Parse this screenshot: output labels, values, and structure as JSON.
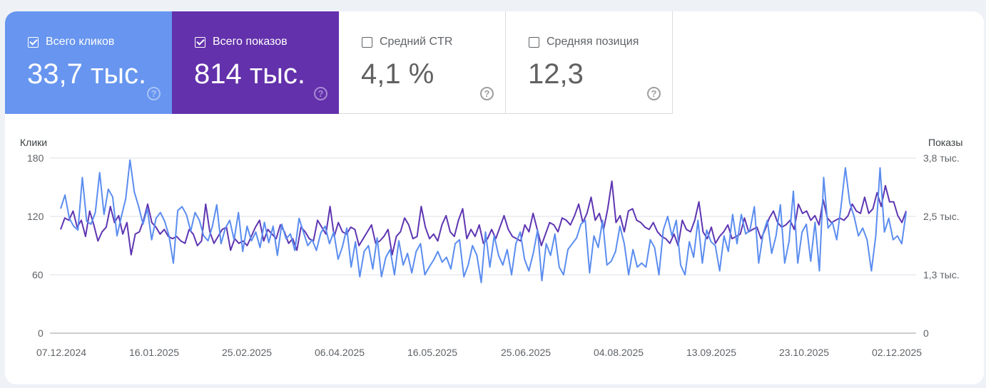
{
  "cards": [
    {
      "label": "Всего кликов",
      "value": "33,7 тыс.",
      "checked": true,
      "color": "#6795ef"
    },
    {
      "label": "Всего показов",
      "value": "814 тыс.",
      "checked": true,
      "color": "#6331ab"
    },
    {
      "label": "Средний CTR",
      "value": "4,1 %",
      "checked": false,
      "color": "#ffffff"
    },
    {
      "label": "Средняя позиция",
      "value": "12,3",
      "checked": false,
      "color": "#ffffff"
    }
  ],
  "help_glyph": "?",
  "chart": {
    "left_axis_title": "Клики",
    "right_axis_title": "Показы",
    "left_ticks": [
      "180",
      "120",
      "60",
      "0"
    ],
    "right_ticks": [
      "3,8 тыс.",
      "2,5 тыс.",
      "1,3 тыс.",
      "0"
    ],
    "x_ticks": [
      "07.12.2024",
      "16.01.2025",
      "25.02.2025",
      "06.04.2025",
      "16.05.2025",
      "25.06.2025",
      "04.08.2025",
      "13.09.2025",
      "23.10.2025",
      "02.12.2025"
    ]
  },
  "chart_data": {
    "type": "line",
    "title": "",
    "xlabel": "",
    "ylabel": "Клики",
    "ylabel_right": "Показы",
    "ylim": [
      0,
      180
    ],
    "ylim_right": [
      0,
      3800
    ],
    "grid": true,
    "x_range": [
      "07.12.2024",
      "06.12.2025"
    ],
    "x_tick_labels": [
      "07.12.2024",
      "16.01.2025",
      "25.02.2025",
      "06.04.2025",
      "16.05.2025",
      "25.06.2025",
      "04.08.2025",
      "13.09.2025",
      "23.10.2025",
      "02.12.2025"
    ],
    "series": [
      {
        "name": "Клики",
        "axis": "left",
        "color": "#5b8def",
        "values": [
          128,
          142,
          118,
          110,
          106,
          160,
          115,
          112,
          124,
          165,
          122,
          148,
          140,
          100,
          120,
          138,
          178,
          145,
          130,
          112,
          128,
          96,
          118,
          124,
          115,
          100,
          72,
          126,
          130,
          122,
          105,
          124,
          116,
          100,
          95,
          110,
          132,
          92,
          108,
          116,
          96,
          124,
          84,
          110,
          95,
          104,
          88,
          114,
          93,
          110,
          80,
          112,
          97,
          102,
          85,
          118,
          104,
          90,
          96,
          85,
          103,
          110,
          92,
          104,
          76,
          89,
          108,
          68,
          94,
          58,
          84,
          90,
          66,
          98,
          58,
          78,
          86,
          60,
          95,
          70,
          82,
          62,
          84,
          92,
          60,
          68,
          75,
          84,
          73,
          78,
          66,
          92,
          96,
          58,
          70,
          90,
          80,
          52,
          104,
          68,
          100,
          80,
          70,
          86,
          60,
          92,
          104,
          76,
          64,
          82,
          106,
          54,
          92,
          80,
          102,
          68,
          60,
          86,
          92,
          98,
          112,
          116,
          62,
          100,
          88,
          116,
          70,
          74,
          84,
          110,
          92,
          60,
          86,
          68,
          72,
          68,
          96,
          88,
          60,
          106,
          120,
          100,
          116,
          70,
          60,
          94,
          78,
          116,
          72,
          106,
          94,
          90,
          64,
          100,
          84,
          122,
          92,
          122,
          102,
          106,
          130,
          72,
          102,
          116,
          82,
          100,
          132,
          72,
          94,
          146,
          72,
          104,
          112,
          74,
          114,
          64,
          160,
          108,
          114,
          96,
          130,
          170,
          134,
          120,
          100,
          108,
          96,
          64,
          100,
          170,
          104,
          118,
          96,
          100,
          92,
          124
        ]
      },
      {
        "name": "Показы",
        "axis": "right",
        "color": "#5e35b1",
        "values": [
          2250,
          2500,
          2450,
          2650,
          2300,
          2450,
          2100,
          2650,
          2350,
          2000,
          2200,
          2300,
          2750,
          2400,
          2550,
          2150,
          2400,
          1700,
          2150,
          2200,
          2450,
          2800,
          2400,
          2300,
          2150,
          2250,
          2100,
          2050,
          2100,
          2000,
          1950,
          2250,
          2150,
          1900,
          2000,
          2800,
          2200,
          1950,
          2100,
          2250,
          2300,
          1800,
          2050,
          1950,
          2000,
          1900,
          2100,
          2300,
          2450,
          2000,
          2250,
          2150,
          2050,
          2350,
          2200,
          1950,
          2050,
          1800,
          2300,
          2200,
          2050,
          2000,
          2450,
          2300,
          2150,
          2750,
          2100,
          2400,
          2200,
          2150,
          2300,
          2250,
          1900,
          2050,
          2200,
          2350,
          1950,
          2000,
          2100,
          2250,
          1700,
          2100,
          2200,
          2500,
          2350,
          2050,
          2100,
          2750,
          2300,
          2050,
          2150,
          2000,
          2350,
          2550,
          2200,
          2100,
          2450,
          2700,
          2050,
          2250,
          2100,
          2350,
          1950,
          2050,
          2250,
          2050,
          2300,
          2550,
          2250,
          2100,
          2050,
          2000,
          2350,
          2200,
          2600,
          2250,
          1900,
          2150,
          2400,
          2350,
          2200,
          2500,
          2450,
          2350,
          2550,
          2800,
          2400,
          2600,
          2950,
          2450,
          2600,
          2250,
          2700,
          3300,
          2400,
          2550,
          2200,
          2650,
          2700,
          2450,
          2400,
          2300,
          2250,
          2400,
          2200,
          2100,
          2050,
          1950,
          2150,
          1900,
          2450,
          2250,
          2200,
          2450,
          2850,
          2200,
          2050,
          2300,
          1950,
          2100,
          2200,
          2350,
          2050,
          2100,
          2150,
          2500,
          2200,
          2250,
          2300,
          2050,
          2250,
          2500,
          2650,
          2400,
          2300,
          2350,
          2450,
          2250,
          2800,
          2600,
          2650,
          2450,
          2550,
          2350,
          2900,
          2500,
          2400,
          2450,
          2500,
          2450,
          2550,
          2800,
          2650,
          2600,
          2950,
          2600,
          2700,
          3050,
          2750,
          3200,
          2850,
          2850,
          2550,
          2400,
          2650
        ]
      }
    ]
  }
}
